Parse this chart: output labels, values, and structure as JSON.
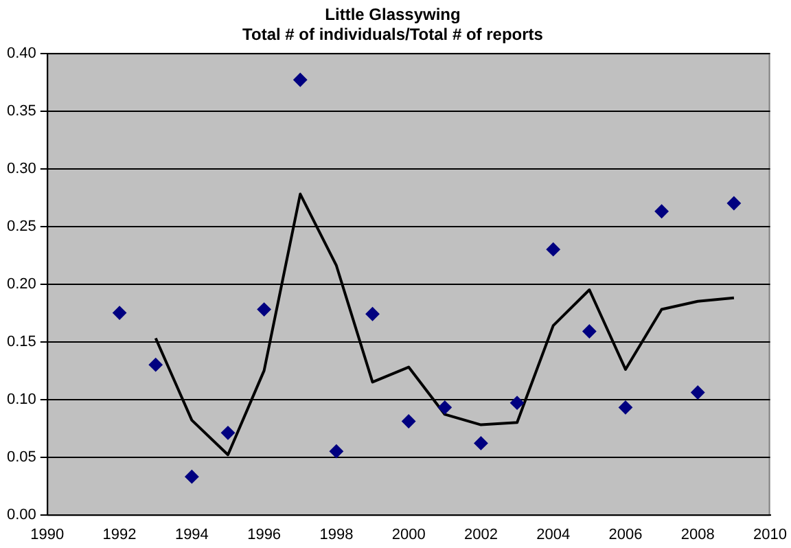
{
  "chart_data": {
    "type": "scatter",
    "title": [
      "Little Glassywing",
      "Total # of individuals/Total # of reports"
    ],
    "x": [
      1992,
      1993,
      1994,
      1995,
      1996,
      1997,
      1998,
      1999,
      2000,
      2001,
      2002,
      2003,
      2004,
      2005,
      2006,
      2007,
      2008,
      2009
    ],
    "series": [
      {
        "type": "scatter",
        "color": "#000080",
        "marker": "diamond",
        "values": [
          0.175,
          0.13,
          0.033,
          0.071,
          0.178,
          0.377,
          0.055,
          0.174,
          0.081,
          0.093,
          0.062,
          0.097,
          0.23,
          0.159,
          0.093,
          0.263,
          0.106,
          0.27
        ]
      },
      {
        "type": "line",
        "color": "#000000",
        "marker": "none",
        "x": [
          1993,
          1994,
          1995,
          1996,
          1997,
          1998,
          1999,
          2000,
          2001,
          2002,
          2003,
          2004,
          2005,
          2006,
          2007,
          2008,
          2009
        ],
        "values": [
          0.153,
          0.082,
          0.052,
          0.125,
          0.278,
          0.216,
          0.115,
          0.128,
          0.087,
          0.078,
          0.08,
          0.164,
          0.195,
          0.126,
          0.178,
          0.185,
          0.188
        ]
      }
    ],
    "xlim": [
      1990,
      2010
    ],
    "xticks": [
      1990,
      1992,
      1994,
      1996,
      1998,
      2000,
      2002,
      2004,
      2006,
      2008,
      2010
    ],
    "ylim": [
      0,
      0.4
    ],
    "yticks": [
      {
        "value": 0,
        "label": "0.00"
      },
      {
        "value": 0.05,
        "label": "0.05"
      },
      {
        "value": 0.1,
        "label": "0.10"
      },
      {
        "value": 0.15,
        "label": "0.15"
      },
      {
        "value": 0.2,
        "label": "0.20"
      },
      {
        "value": 0.25,
        "label": "0.25"
      },
      {
        "value": 0.3,
        "label": "0.30"
      },
      {
        "value": 0.35,
        "label": "0.35"
      },
      {
        "value": 0.4,
        "label": "0.40"
      }
    ],
    "grid": "y",
    "legend": false
  }
}
